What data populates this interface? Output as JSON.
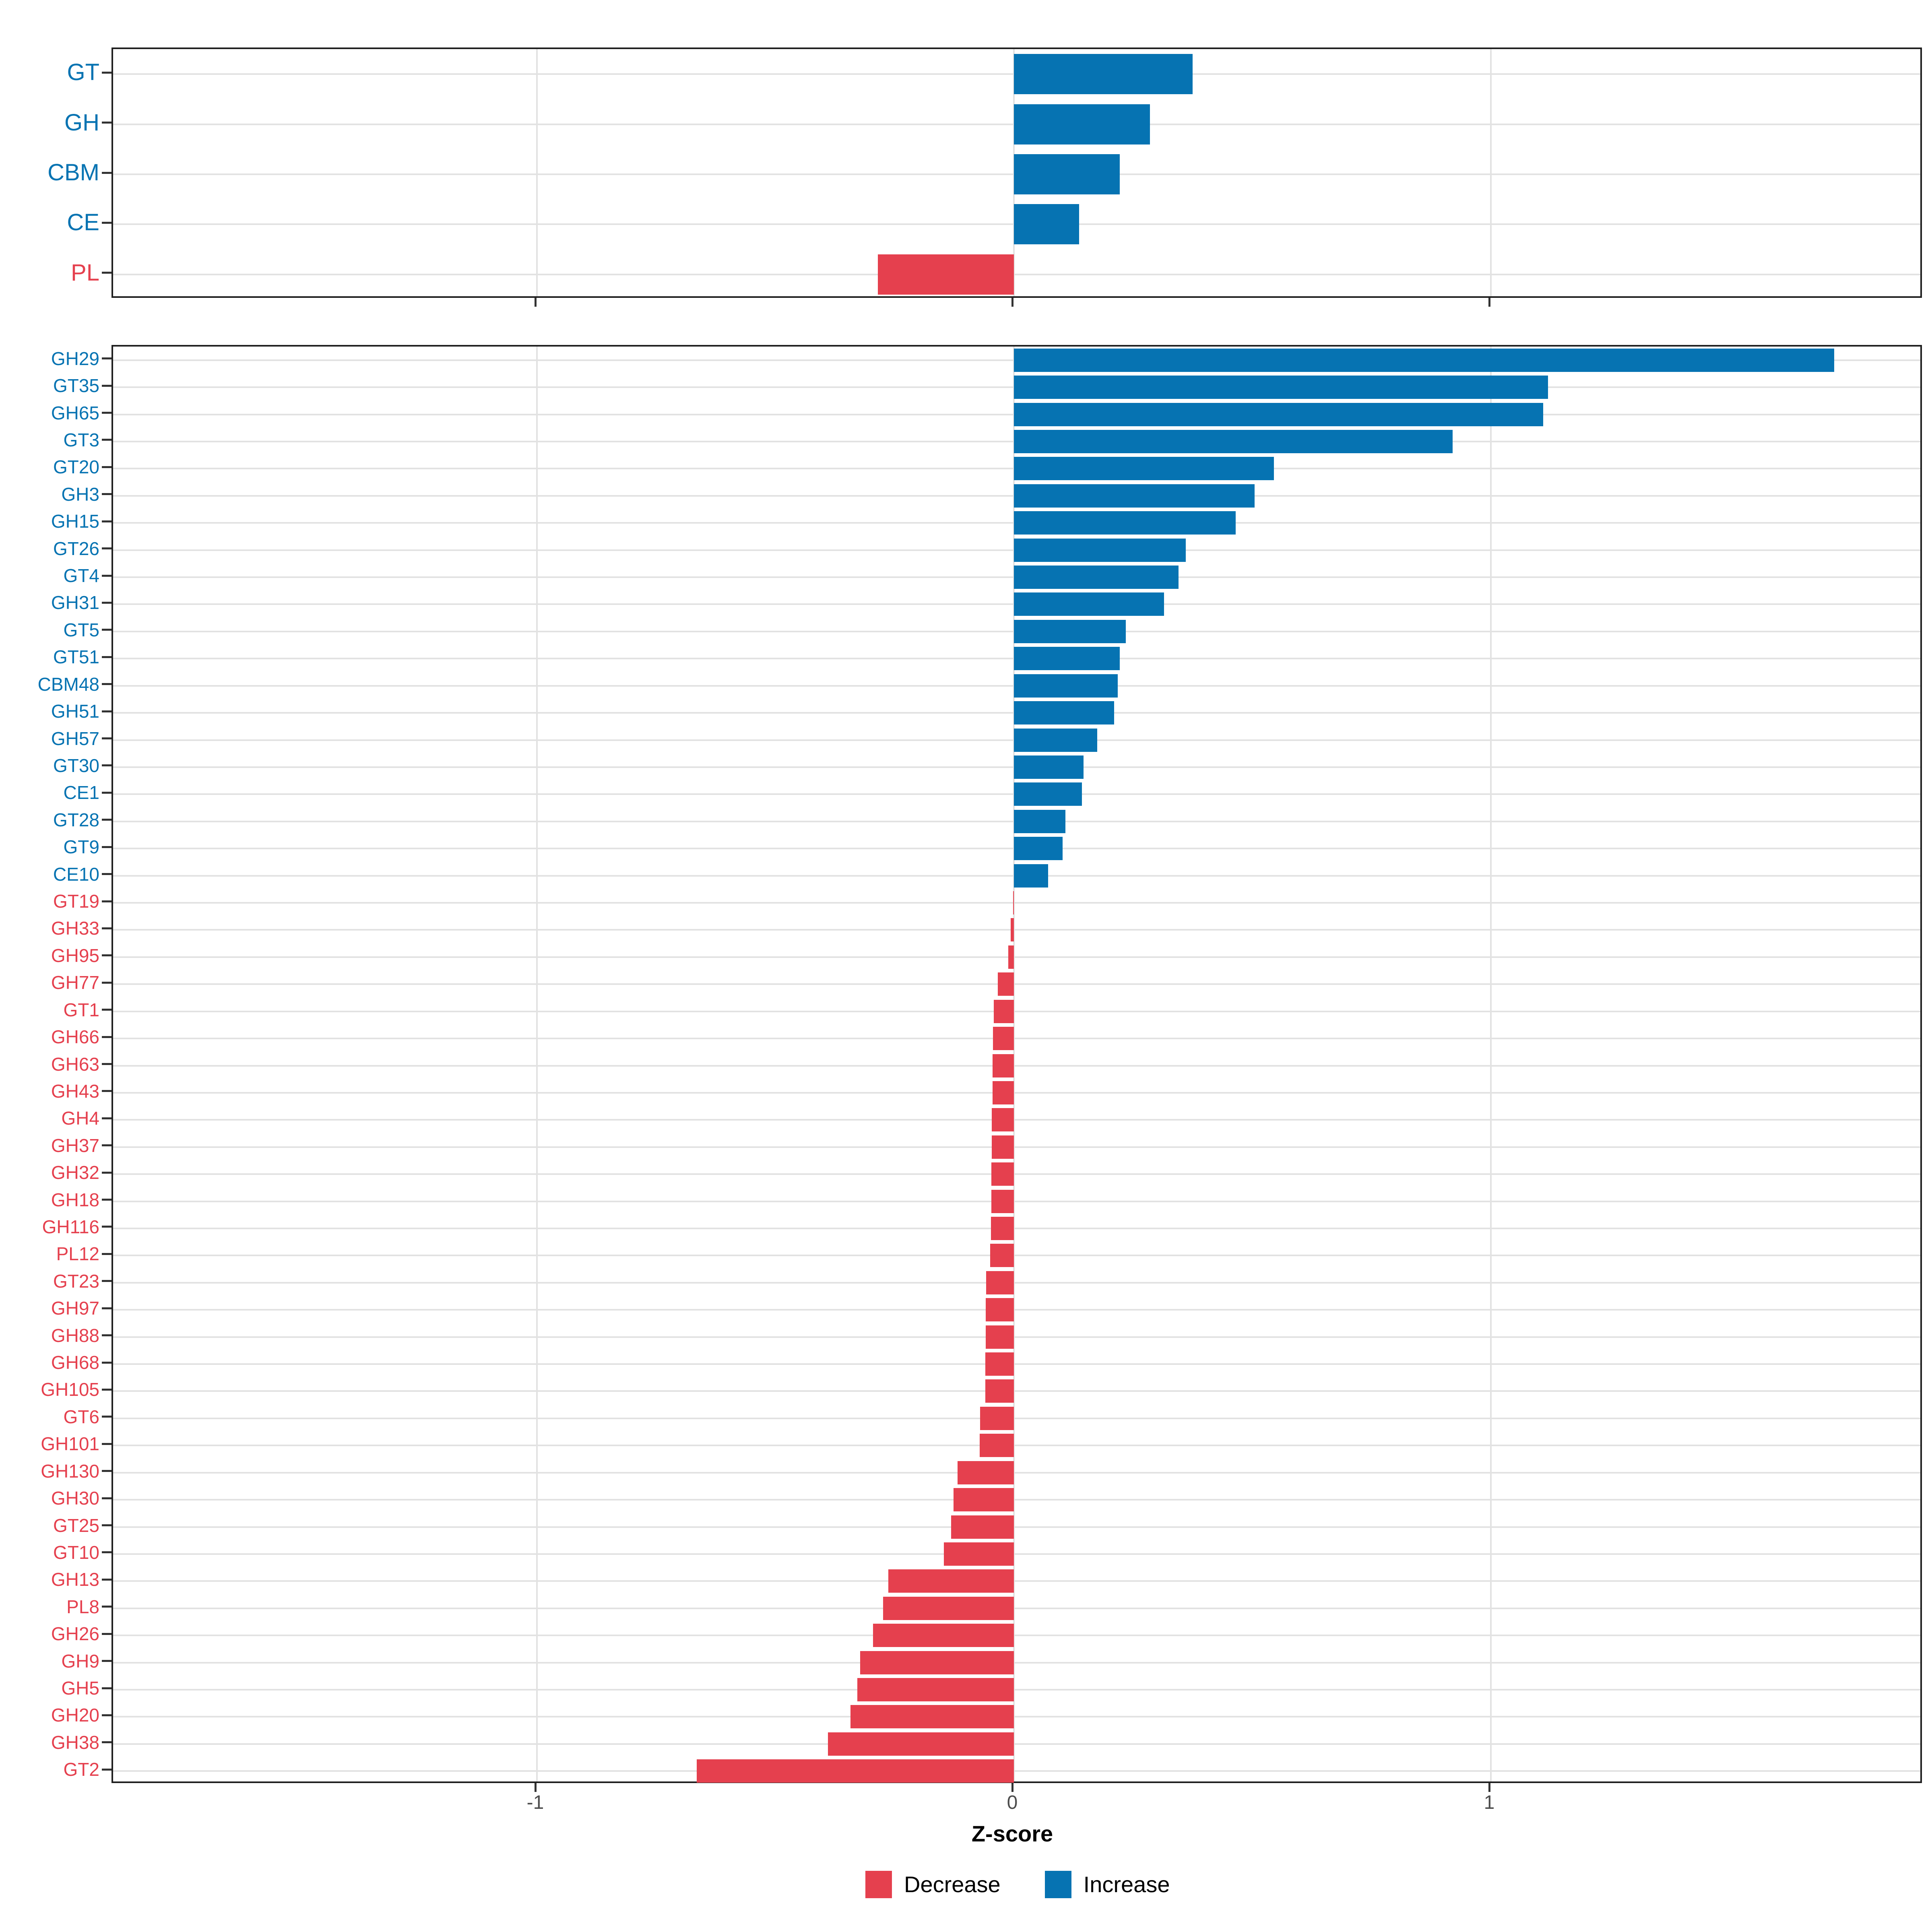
{
  "figure": {
    "x_axis_title": "Z-score"
  },
  "axis": {
    "ticks": [
      -1,
      0,
      1
    ],
    "tick_labels": [
      "-1",
      "0",
      "1"
    ],
    "xlim": [
      -1.89,
      1.91
    ]
  },
  "colors": {
    "increase": "#0673B2",
    "decrease": "#E5404E",
    "grid": "#E2E2E2",
    "panel_border": "#1F1F1F",
    "tick": "#333333",
    "tick_label": "#4D4D4D"
  },
  "legend": {
    "items": [
      {
        "label": "Decrease",
        "color_key": "decrease"
      },
      {
        "label": "Increase",
        "color_key": "increase"
      }
    ]
  },
  "chart_data": [
    {
      "type": "bar",
      "orientation": "horizontal",
      "panel": "cazyme-class-summary",
      "title": "",
      "xlabel": "Z-score",
      "ylabel": "",
      "grid": "major-only",
      "legend_position": "bottom",
      "categories": [
        "GT",
        "GH",
        "CBM",
        "CE",
        "PL"
      ],
      "values": [
        0.375,
        0.285,
        0.222,
        0.137,
        -0.285
      ]
    },
    {
      "type": "bar",
      "orientation": "horizontal",
      "panel": "cazyme-family-detail",
      "title": "",
      "xlabel": "Z-score",
      "ylabel": "",
      "grid": "major-only",
      "legend_position": "bottom",
      "categories": [
        "GH29",
        "GT35",
        "GH65",
        "GT3",
        "GT20",
        "GH3",
        "GH15",
        "GT26",
        "GT4",
        "GH31",
        "GT5",
        "GT51",
        "CBM48",
        "GH51",
        "GH57",
        "GT30",
        "CE1",
        "GT28",
        "GT9",
        "CE10",
        "GT19",
        "GH33",
        "GH95",
        "GH77",
        "GT1",
        "GH66",
        "GH63",
        "GH43",
        "GH4",
        "GH37",
        "GH32",
        "GH18",
        "GH116",
        "PL12",
        "GT23",
        "GH97",
        "GH88",
        "GH68",
        "GH105",
        "GT6",
        "GH101",
        "GH130",
        "GH30",
        "GT25",
        "GT10",
        "GH13",
        "PL8",
        "GH26",
        "GH9",
        "GH5",
        "GH20",
        "GH38",
        "GT2"
      ],
      "values": [
        1.72,
        1.12,
        1.11,
        0.92,
        0.545,
        0.505,
        0.465,
        0.36,
        0.345,
        0.315,
        0.235,
        0.222,
        0.218,
        0.21,
        0.175,
        0.146,
        0.143,
        0.108,
        0.102,
        0.072,
        -0.002,
        -0.007,
        -0.012,
        -0.034,
        -0.042,
        -0.044,
        -0.045,
        -0.045,
        -0.046,
        -0.046,
        -0.047,
        -0.047,
        -0.048,
        -0.05,
        -0.058,
        -0.059,
        -0.059,
        -0.06,
        -0.06,
        -0.071,
        -0.072,
        -0.118,
        -0.127,
        -0.132,
        -0.147,
        -0.263,
        -0.274,
        -0.295,
        -0.322,
        -0.328,
        -0.343,
        -0.39,
        -0.665
      ]
    }
  ]
}
